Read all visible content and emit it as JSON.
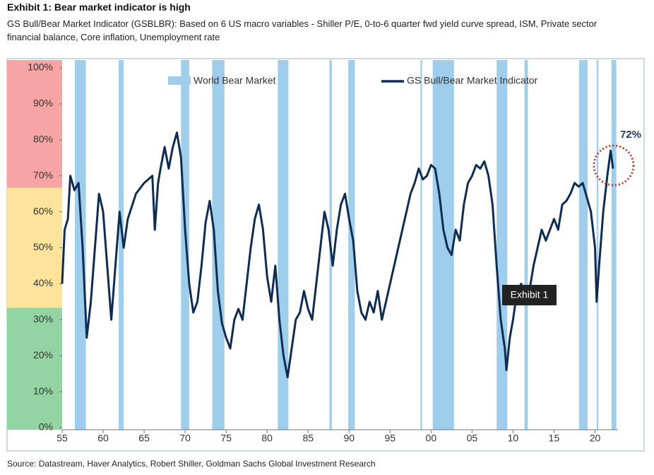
{
  "chart_data": {
    "type": "line",
    "title": "Exhibit 1: Bear market indicator is high",
    "subtitle": "GS Bull/Bear Market Indicator (GSBLBR): Based on 6 US macro variables - Shiller P/E, 0-to-6 quarter fwd yield curve spread, ISM, Private sector financial balance, Core inflation, Unemployment rate",
    "source": "Source: Datastream, Haver Analytics, Robert Shiller, Goldman Sachs Global Investment Research",
    "xlim": [
      1955,
      2022.8
    ],
    "ylim": [
      0,
      100
    ],
    "xticks": [
      {
        "value": 1955,
        "label": "55"
      },
      {
        "value": 1960,
        "label": "60"
      },
      {
        "value": 1965,
        "label": "65"
      },
      {
        "value": 1970,
        "label": "70"
      },
      {
        "value": 1975,
        "label": "75"
      },
      {
        "value": 1980,
        "label": "80"
      },
      {
        "value": 1985,
        "label": "85"
      },
      {
        "value": 1990,
        "label": "90"
      },
      {
        "value": 1995,
        "label": "95"
      },
      {
        "value": 2000,
        "label": "00"
      },
      {
        "value": 2005,
        "label": "05"
      },
      {
        "value": 2010,
        "label": "10"
      },
      {
        "value": 2015,
        "label": "15"
      },
      {
        "value": 2020,
        "label": "20"
      }
    ],
    "yticks": [
      {
        "value": 0,
        "label": "0%"
      },
      {
        "value": 10,
        "label": "10%"
      },
      {
        "value": 20,
        "label": "20%"
      },
      {
        "value": 30,
        "label": "30%"
      },
      {
        "value": 40,
        "label": "40%"
      },
      {
        "value": 50,
        "label": "50%"
      },
      {
        "value": 60,
        "label": "60%"
      },
      {
        "value": 70,
        "label": "70%"
      },
      {
        "value": 80,
        "label": "80%"
      },
      {
        "value": 90,
        "label": "90%"
      },
      {
        "value": 100,
        "label": "100%"
      }
    ],
    "zones": [
      {
        "from": 0,
        "to": 33.3,
        "color": "#92d5a2"
      },
      {
        "from": 33.3,
        "to": 66.7,
        "color": "#fde49a"
      },
      {
        "from": 66.7,
        "to": 100,
        "color": "#f7a4a4"
      }
    ],
    "bear_markets": {
      "name": "World Bear Market",
      "color": "#9fcdec",
      "periods": [
        [
          1956.55,
          1957.9
        ],
        [
          1961.9,
          1962.5
        ],
        [
          1969.5,
          1970.5
        ],
        [
          1973.3,
          1974.8
        ],
        [
          1981.3,
          1982.6
        ],
        [
          1987.6,
          1987.9
        ],
        [
          1989.9,
          1990.7
        ],
        [
          1998.7,
          1998.9
        ],
        [
          2000.2,
          2002.8
        ],
        [
          2008.0,
          2009.3
        ],
        [
          2011.4,
          2011.8
        ],
        [
          2018.05,
          2019.1
        ],
        [
          2020.2,
          2020.4
        ],
        [
          2022.0,
          2022.6
        ]
      ]
    },
    "x": [
      1955,
      1955.3,
      1955.7,
      1956,
      1956.5,
      1957,
      1957.5,
      1958,
      1958.5,
      1959,
      1959.5,
      1960,
      1960.5,
      1961,
      1961.5,
      1962,
      1962.5,
      1963,
      1964,
      1965,
      1966,
      1966.3,
      1966.7,
      1967,
      1967.5,
      1968,
      1968.5,
      1969,
      1969.5,
      1970,
      1970.5,
      1971,
      1971.5,
      1972,
      1972.5,
      1973,
      1973.5,
      1974,
      1974.5,
      1975,
      1975.5,
      1976,
      1976.5,
      1977,
      1977.5,
      1978,
      1978.5,
      1979,
      1979.5,
      1980,
      1980.5,
      1981,
      1981.5,
      1982,
      1982.5,
      1983,
      1983.5,
      1984,
      1984.5,
      1985,
      1985.5,
      1986,
      1986.5,
      1987,
      1987.5,
      1988,
      1988.5,
      1989,
      1989.5,
      1990,
      1990.5,
      1991,
      1991.5,
      1992,
      1992.5,
      1993,
      1993.5,
      1994,
      1994.5,
      1995,
      1995.5,
      1996,
      1996.5,
      1997,
      1997.5,
      1998,
      1998.5,
      1999,
      1999.5,
      2000,
      2000.5,
      2001,
      2001.5,
      2002,
      2002.5,
      2003,
      2003.5,
      2004,
      2004.5,
      2005,
      2005.5,
      2006,
      2006.5,
      2007,
      2007.5,
      2008,
      2008.5,
      2009,
      2009.2,
      2009.6,
      2010,
      2010.5,
      2011,
      2011.5,
      2012,
      2012.5,
      2013,
      2013.5,
      2014,
      2014.5,
      2015,
      2015.5,
      2016,
      2016.5,
      2017,
      2017.5,
      2018,
      2018.5,
      2019,
      2019.5,
      2020,
      2020.2,
      2020.5,
      2021,
      2021.5,
      2021.9,
      2022.2
    ],
    "series": [
      {
        "name": "GS Bull/Bear Market Indicator",
        "color": "#0f2d52",
        "values": [
          40,
          55,
          58,
          70,
          66,
          68,
          50,
          25,
          35,
          50,
          65,
          60,
          45,
          30,
          45,
          60,
          50,
          58,
          65,
          68,
          70,
          55,
          68,
          72,
          78,
          72,
          78,
          82,
          75,
          55,
          40,
          32,
          35,
          45,
          57,
          63,
          55,
          38,
          29,
          25,
          22,
          30,
          33,
          30,
          40,
          50,
          58,
          62,
          55,
          42,
          35,
          45,
          30,
          20,
          14,
          22,
          30,
          32,
          38,
          33,
          30,
          40,
          50,
          60,
          55,
          45,
          55,
          62,
          65,
          58,
          52,
          38,
          32,
          30,
          35,
          32,
          38,
          30,
          35,
          40,
          45,
          50,
          55,
          60,
          65,
          68,
          72,
          69,
          70,
          73,
          72,
          65,
          55,
          50,
          48,
          55,
          52,
          62,
          68,
          70,
          73,
          72,
          74,
          70,
          62,
          45,
          30,
          22,
          16,
          25,
          30,
          38,
          40,
          35,
          38,
          45,
          50,
          55,
          52,
          55,
          58,
          55,
          62,
          63,
          65,
          68,
          67,
          68,
          64,
          60,
          50,
          35,
          45,
          60,
          70,
          77,
          72
        ]
      }
    ],
    "annotations": [
      "72%",
      "Exhibit 1"
    ]
  }
}
